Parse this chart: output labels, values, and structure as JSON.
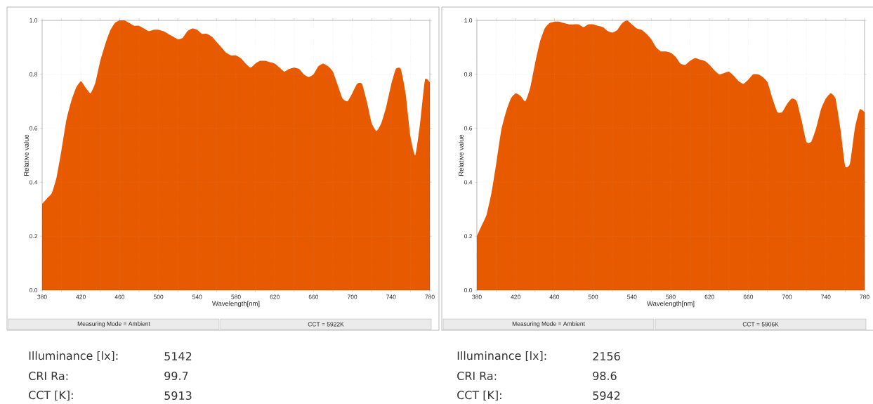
{
  "chart_data": [
    {
      "type": "area",
      "xlabel": "Wavelength[nm]",
      "ylabel": "Relative value",
      "x": [
        380,
        385,
        390,
        395,
        400,
        405,
        410,
        415,
        420,
        425,
        430,
        435,
        440,
        445,
        450,
        455,
        460,
        465,
        470,
        475,
        480,
        485,
        490,
        495,
        500,
        505,
        510,
        515,
        520,
        525,
        530,
        535,
        540,
        545,
        550,
        555,
        560,
        565,
        570,
        575,
        580,
        585,
        590,
        595,
        600,
        605,
        610,
        615,
        620,
        625,
        630,
        635,
        640,
        645,
        650,
        655,
        660,
        665,
        670,
        675,
        680,
        685,
        690,
        695,
        700,
        705,
        710,
        715,
        720,
        725,
        730,
        735,
        740,
        745,
        750,
        755,
        760,
        765,
        770,
        775,
        780
      ],
      "series": [
        {
          "color": "#e85a00",
          "values": [
            0.32,
            0.34,
            0.36,
            0.42,
            0.52,
            0.63,
            0.7,
            0.75,
            0.775,
            0.75,
            0.73,
            0.77,
            0.85,
            0.91,
            0.96,
            0.99,
            1.0,
            1.0,
            0.99,
            0.98,
            0.98,
            0.97,
            0.96,
            0.965,
            0.965,
            0.96,
            0.95,
            0.94,
            0.93,
            0.935,
            0.96,
            0.97,
            0.965,
            0.95,
            0.95,
            0.94,
            0.92,
            0.9,
            0.88,
            0.87,
            0.87,
            0.86,
            0.84,
            0.825,
            0.84,
            0.85,
            0.85,
            0.845,
            0.84,
            0.825,
            0.81,
            0.82,
            0.825,
            0.82,
            0.8,
            0.79,
            0.8,
            0.83,
            0.84,
            0.83,
            0.81,
            0.76,
            0.71,
            0.7,
            0.73,
            0.765,
            0.765,
            0.7,
            0.62,
            0.59,
            0.62,
            0.68,
            0.76,
            0.82,
            0.82,
            0.73,
            0.57,
            0.5,
            0.62,
            0.78,
            0.77
          ]
        }
      ],
      "xlim": [
        380,
        780
      ],
      "ylim": [
        0,
        1
      ],
      "xticks": [
        380,
        {
          "value": 400,
          "label": null
        },
        420,
        {
          "value": 440,
          "label": null
        },
        460,
        {
          "value": 480,
          "label": null
        },
        500,
        {
          "value": 520,
          "label": null
        },
        540,
        {
          "value": 560,
          "label": null
        },
        580,
        {
          "value": 600,
          "label": null
        },
        620,
        {
          "value": 640,
          "label": null
        },
        660,
        {
          "value": 680,
          "label": null
        },
        700,
        {
          "value": 720,
          "label": null
        },
        740,
        {
          "value": 760,
          "label": null
        },
        780
      ],
      "yticks": [
        {
          "value": 0,
          "label": "0.0"
        },
        {
          "value": 0.2,
          "label": "0.2"
        },
        {
          "value": 0.4,
          "label": "0.4"
        },
        {
          "value": 0.6,
          "label": "0.6"
        },
        {
          "value": 0.8,
          "label": "0.8"
        },
        {
          "value": 1,
          "label": "1.0"
        }
      ],
      "grid": true,
      "annotations": [
        "Measuring Mode = Ambient",
        "CCT = 5922K",
        "Illuminance [lx]:",
        "5142",
        "CRI Ra:",
        "99.7",
        "CCT [K]:",
        "5913"
      ]
    },
    {
      "type": "area",
      "xlabel": "Wavelength[nm]",
      "ylabel": "Relative value",
      "x": [
        380,
        385,
        390,
        395,
        400,
        405,
        410,
        415,
        420,
        425,
        430,
        435,
        440,
        445,
        450,
        455,
        460,
        465,
        470,
        475,
        480,
        485,
        490,
        495,
        500,
        505,
        510,
        515,
        520,
        525,
        530,
        535,
        540,
        545,
        550,
        555,
        560,
        565,
        570,
        575,
        580,
        585,
        590,
        595,
        600,
        605,
        610,
        615,
        620,
        625,
        630,
        635,
        640,
        645,
        650,
        655,
        660,
        665,
        670,
        675,
        680,
        685,
        690,
        695,
        700,
        705,
        710,
        715,
        720,
        725,
        730,
        735,
        740,
        745,
        750,
        755,
        760,
        765,
        770,
        775,
        780
      ],
      "series": [
        {
          "color": "#e85a00",
          "values": [
            0.2,
            0.24,
            0.28,
            0.36,
            0.47,
            0.59,
            0.66,
            0.71,
            0.73,
            0.72,
            0.7,
            0.75,
            0.84,
            0.92,
            0.97,
            0.99,
            0.995,
            0.995,
            0.99,
            0.985,
            0.985,
            0.985,
            0.975,
            0.985,
            0.985,
            0.98,
            0.975,
            0.96,
            0.955,
            0.965,
            0.99,
            1.0,
            0.985,
            0.97,
            0.965,
            0.95,
            0.93,
            0.9,
            0.885,
            0.885,
            0.88,
            0.865,
            0.84,
            0.835,
            0.85,
            0.86,
            0.855,
            0.85,
            0.835,
            0.815,
            0.8,
            0.805,
            0.81,
            0.795,
            0.775,
            0.765,
            0.78,
            0.8,
            0.8,
            0.79,
            0.77,
            0.71,
            0.66,
            0.66,
            0.69,
            0.71,
            0.7,
            0.63,
            0.55,
            0.55,
            0.6,
            0.67,
            0.71,
            0.73,
            0.71,
            0.6,
            0.46,
            0.47,
            0.6,
            0.67,
            0.66
          ]
        }
      ],
      "xlim": [
        380,
        780
      ],
      "ylim": [
        0,
        1
      ],
      "xticks": [
        380,
        {
          "value": 400,
          "label": null
        },
        420,
        {
          "value": 440,
          "label": null
        },
        460,
        {
          "value": 480,
          "label": null
        },
        500,
        {
          "value": 520,
          "label": null
        },
        540,
        {
          "value": 560,
          "label": null
        },
        580,
        {
          "value": 600,
          "label": null
        },
        620,
        {
          "value": 640,
          "label": null
        },
        660,
        {
          "value": 680,
          "label": null
        },
        700,
        {
          "value": 720,
          "label": null
        },
        740,
        {
          "value": 760,
          "label": null
        },
        780
      ],
      "yticks": [
        {
          "value": 0,
          "label": "0.0"
        },
        {
          "value": 0.2,
          "label": "0.2"
        },
        {
          "value": 0.4,
          "label": "0.4"
        },
        {
          "value": 0.6,
          "label": "0.6"
        },
        {
          "value": 0.8,
          "label": "0.8"
        },
        {
          "value": 1,
          "label": "1.0"
        }
      ],
      "grid": true,
      "annotations": [
        "Measuring Mode = Ambient",
        "CCT = 5906K",
        "Illuminance [lx]:",
        "2156",
        "CRI Ra:",
        "98.6",
        "CCT [K]:",
        "5942"
      ]
    }
  ]
}
